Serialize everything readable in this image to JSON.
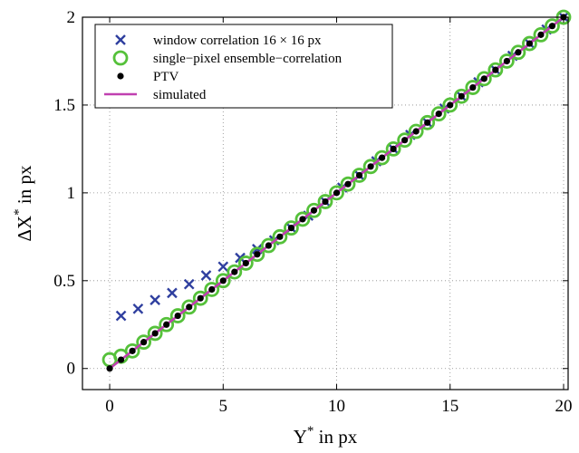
{
  "chart_data": {
    "type": "scatter",
    "xlabel": {
      "base": "Y",
      "sup": "*",
      "rest": " in px"
    },
    "ylabel": {
      "pre": "ΔX",
      "sup": "*",
      "rest": " in px"
    },
    "xlim": [
      -1.2,
      20.2
    ],
    "ylim": [
      -0.12,
      2.0
    ],
    "xticks": [
      0,
      5,
      10,
      15,
      20
    ],
    "yticks": [
      0,
      0.5,
      1,
      1.5,
      2
    ],
    "xtick_labels": [
      "0",
      "5",
      "10",
      "15",
      "20"
    ],
    "ytick_labels": [
      "0",
      "0.5",
      "1",
      "1.5",
      "2"
    ],
    "grid": true,
    "legend_position": "top-left",
    "series": [
      {
        "name": "window correlation 16 × 16 px",
        "marker": "x",
        "color": "#2f3f9f",
        "x": [
          0.5,
          1.25,
          2,
          2.75,
          3.5,
          4.25,
          5,
          5.75,
          6.5,
          7.25,
          8,
          8.75,
          9.5,
          10.25,
          11,
          11.75,
          12.5,
          13.25,
          14,
          14.75,
          15.5,
          16.25,
          17,
          17.75,
          18.5,
          19.25,
          20
        ],
        "y": [
          0.3,
          0.34,
          0.39,
          0.43,
          0.48,
          0.53,
          0.58,
          0.63,
          0.68,
          0.73,
          0.8,
          0.87,
          0.95,
          1.03,
          1.1,
          1.18,
          1.25,
          1.33,
          1.4,
          1.48,
          1.55,
          1.63,
          1.7,
          1.78,
          1.85,
          1.93,
          2.0
        ]
      },
      {
        "name": "single−pixel ensemble−correlation",
        "marker": "circle-open",
        "color": "#55c13a",
        "x": [
          0,
          0.5,
          1,
          1.5,
          2,
          2.5,
          3,
          3.5,
          4,
          4.5,
          5,
          5.5,
          6,
          6.5,
          7,
          7.5,
          8,
          8.5,
          9,
          9.5,
          10,
          10.5,
          11,
          11.5,
          12,
          12.5,
          13,
          13.5,
          14,
          14.5,
          15,
          15.5,
          16,
          16.5,
          17,
          17.5,
          18,
          18.5,
          19,
          19.5,
          20
        ],
        "y": [
          0.05,
          0.07,
          0.1,
          0.15,
          0.2,
          0.25,
          0.3,
          0.35,
          0.4,
          0.45,
          0.5,
          0.55,
          0.6,
          0.65,
          0.7,
          0.75,
          0.8,
          0.85,
          0.9,
          0.95,
          1.0,
          1.05,
          1.1,
          1.15,
          1.2,
          1.25,
          1.3,
          1.35,
          1.4,
          1.45,
          1.5,
          1.55,
          1.6,
          1.65,
          1.7,
          1.75,
          1.8,
          1.85,
          1.9,
          1.95,
          2.0
        ]
      },
      {
        "name": "PTV",
        "marker": "dot",
        "color": "#000000",
        "x": [
          0,
          0.5,
          1,
          1.5,
          2,
          2.5,
          3,
          3.5,
          4,
          4.5,
          5,
          5.5,
          6,
          6.5,
          7,
          7.5,
          8,
          8.5,
          9,
          9.5,
          10,
          10.5,
          11,
          11.5,
          12,
          12.5,
          13,
          13.5,
          14,
          14.5,
          15,
          15.5,
          16,
          16.5,
          17,
          17.5,
          18,
          18.5,
          19,
          19.5,
          20
        ],
        "y": [
          0,
          0.05,
          0.1,
          0.15,
          0.2,
          0.25,
          0.3,
          0.35,
          0.4,
          0.45,
          0.5,
          0.55,
          0.6,
          0.65,
          0.7,
          0.75,
          0.8,
          0.85,
          0.9,
          0.95,
          1.0,
          1.05,
          1.1,
          1.15,
          1.2,
          1.25,
          1.3,
          1.35,
          1.4,
          1.45,
          1.5,
          1.55,
          1.6,
          1.65,
          1.7,
          1.75,
          1.8,
          1.85,
          1.9,
          1.95,
          2.0
        ]
      },
      {
        "name": "simulated",
        "marker": "line",
        "color": "#c040b0",
        "x": [
          0,
          20
        ],
        "y": [
          0,
          2.0
        ]
      }
    ]
  }
}
